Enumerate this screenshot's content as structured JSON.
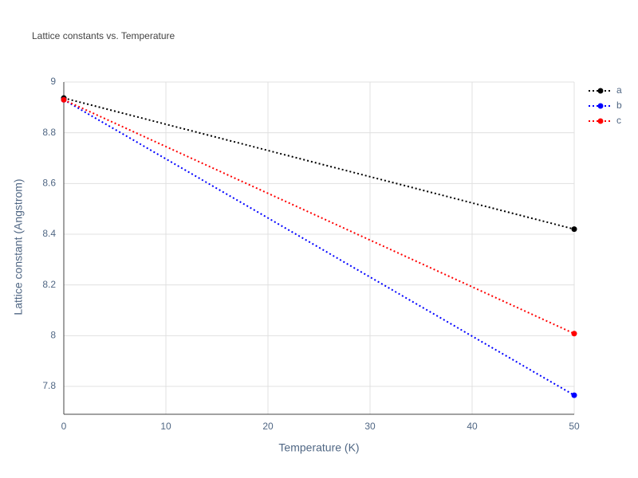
{
  "chart_data": {
    "type": "line",
    "title": "Lattice constants vs. Temperature",
    "x_label": "Temperature (K)",
    "y_label": "Lattice constant (Angstrom)",
    "x": [
      0,
      50
    ],
    "series": [
      {
        "name": "a",
        "color": "#000000",
        "values": [
          8.937,
          8.42
        ]
      },
      {
        "name": "b",
        "color": "#0000ff",
        "values": [
          8.93,
          7.765
        ]
      },
      {
        "name": "c",
        "color": "#ff0000",
        "values": [
          8.93,
          8.008
        ]
      }
    ],
    "xlim": [
      0,
      50
    ],
    "xticks": [
      0,
      10,
      20,
      30,
      40,
      50
    ],
    "ylim": [
      7.69,
      9
    ],
    "yticks": [
      7.8,
      8,
      8.2,
      8.4,
      8.6,
      8.8,
      9
    ],
    "grid": true,
    "line_style": "dotted",
    "legend": "top-right"
  }
}
